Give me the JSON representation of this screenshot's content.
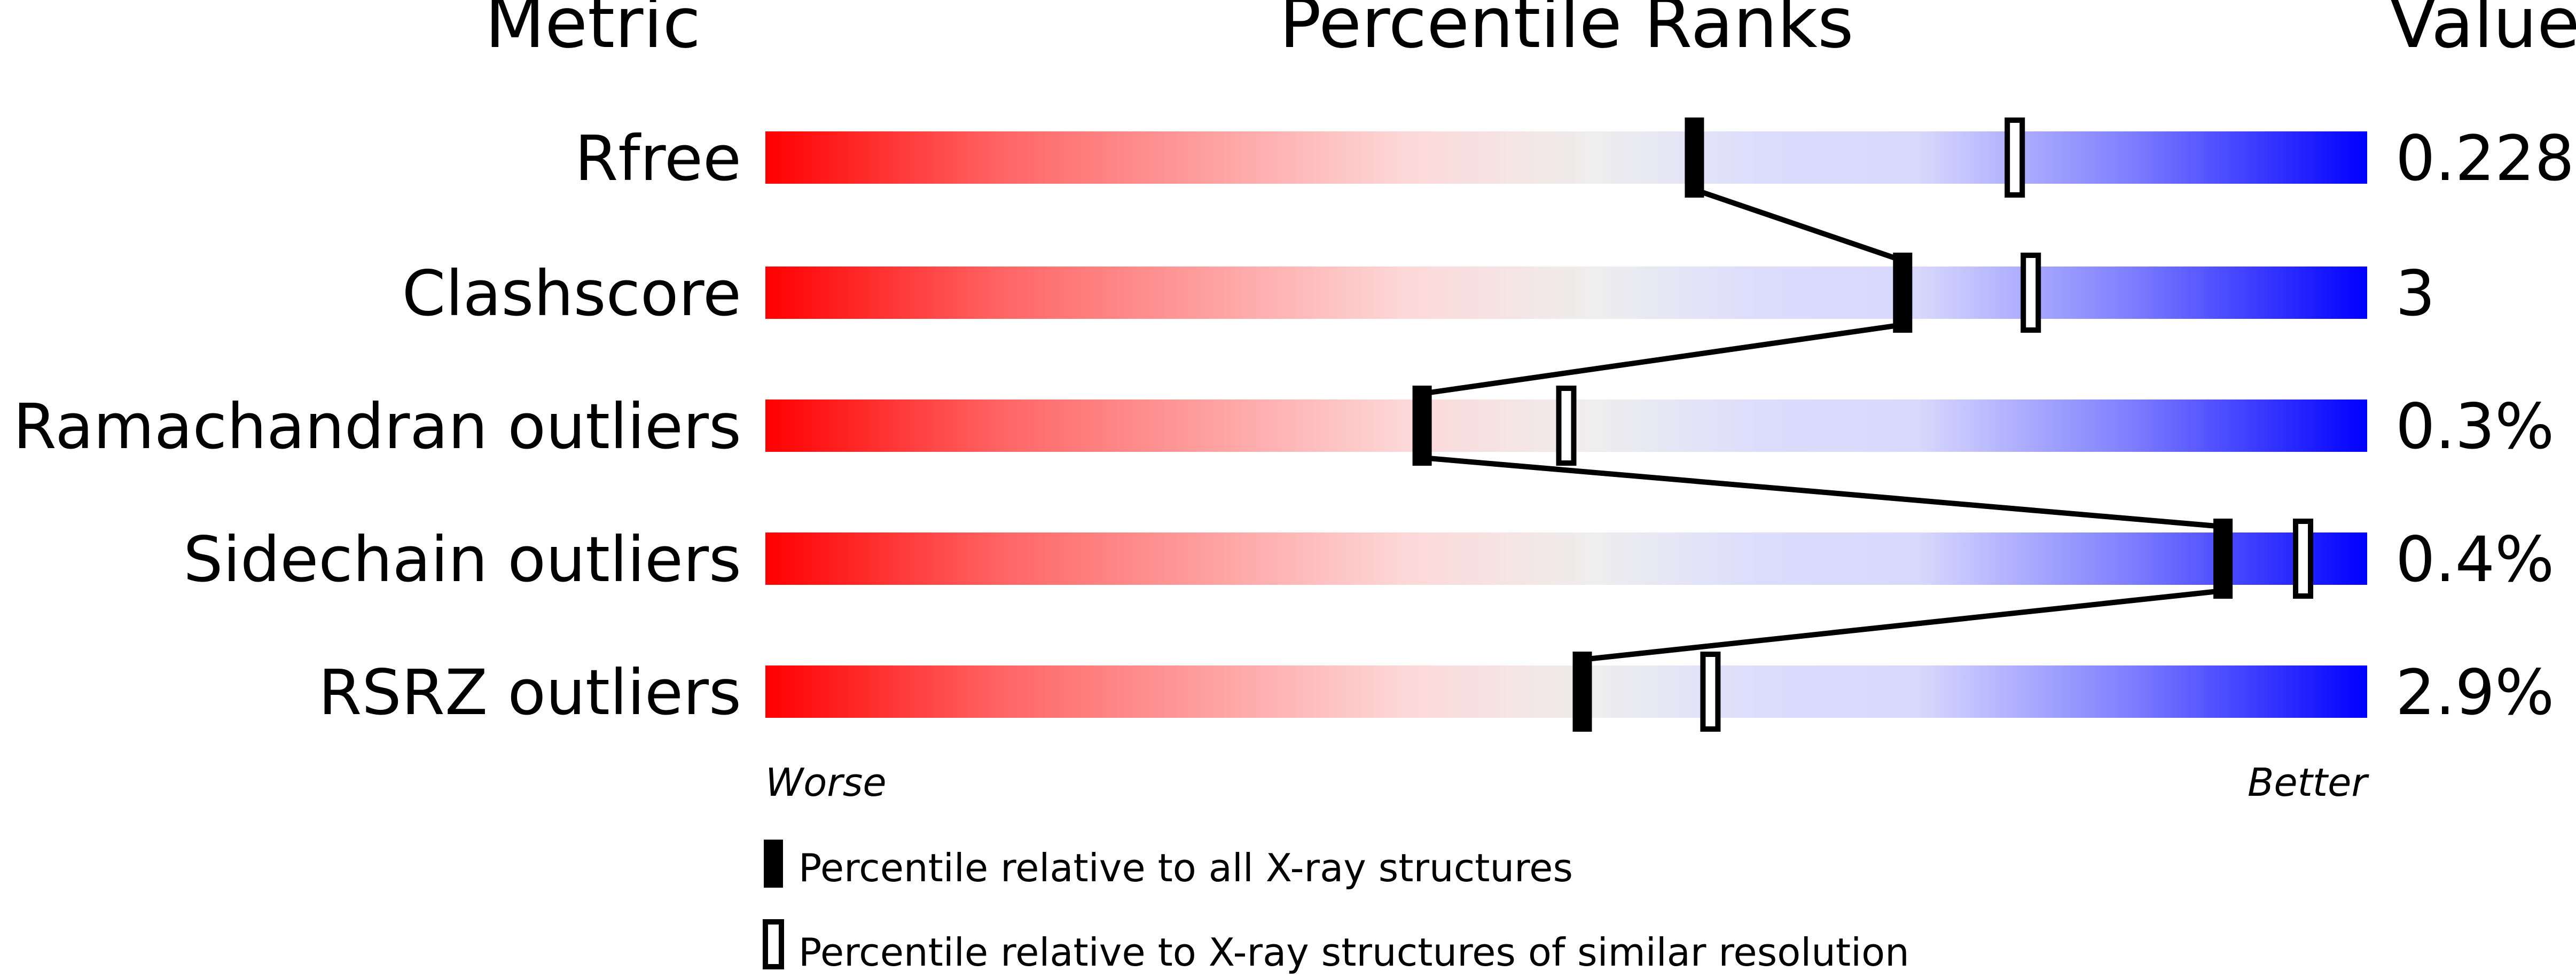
{
  "chart_data": {
    "type": "percentile-bars",
    "headers": {
      "metric": "Metric",
      "ranks": "Percentile Ranks",
      "value": "Value"
    },
    "metrics": [
      {
        "name": "Rfree",
        "value": "0.228",
        "percentile_all": 58,
        "percentile_similar": 78
      },
      {
        "name": "Clashscore",
        "value": "3",
        "percentile_all": 71,
        "percentile_similar": 79
      },
      {
        "name": "Ramachandran outliers",
        "value": "0.3%",
        "percentile_all": 41,
        "percentile_similar": 50
      },
      {
        "name": "Sidechain outliers",
        "value": "0.4%",
        "percentile_all": 91,
        "percentile_similar": 96
      },
      {
        "name": "RSRZ outliers",
        "value": "2.9%",
        "percentile_all": 51,
        "percentile_similar": 59
      }
    ],
    "xlim": [
      0,
      100
    ],
    "axis_labels": {
      "worse": "Worse",
      "better": "Better"
    },
    "legend": {
      "all": "Percentile relative to all X-ray structures",
      "similar": "Percentile relative to X-ray structures of similar resolution"
    },
    "colors": {
      "worse": "#ff0000",
      "mid": "#eeeeee",
      "better": "#0000ff",
      "marker": "#000000"
    }
  }
}
